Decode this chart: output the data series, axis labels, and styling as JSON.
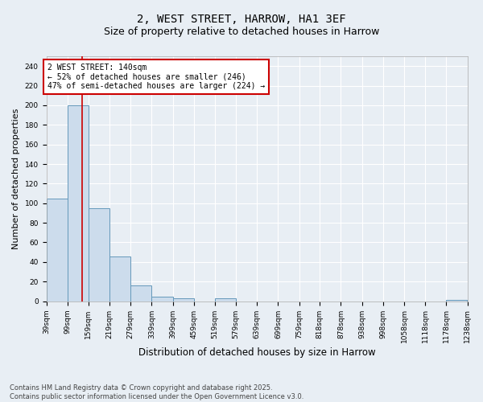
{
  "title_line1": "2, WEST STREET, HARROW, HA1 3EF",
  "title_line2": "Size of property relative to detached houses in Harrow",
  "xlabel": "Distribution of detached houses by size in Harrow",
  "ylabel": "Number of detached properties",
  "bin_edges": [
    39,
    99,
    159,
    219,
    279,
    339,
    399,
    459,
    519,
    579,
    639,
    699,
    759,
    818,
    878,
    938,
    998,
    1058,
    1118,
    1178,
    1238
  ],
  "bar_heights": [
    105,
    200,
    95,
    46,
    16,
    5,
    3,
    0,
    3,
    0,
    0,
    0,
    0,
    0,
    0,
    0,
    0,
    0,
    0,
    1
  ],
  "bar_color": "#ccdcec",
  "bar_edge_color": "#6699bb",
  "bar_edge_width": 0.7,
  "property_size": 140,
  "vline_color": "#cc0000",
  "annotation_line1": "2 WEST STREET: 140sqm",
  "annotation_line2": "← 52% of detached houses are smaller (246)",
  "annotation_line3": "47% of semi-detached houses are larger (224) →",
  "annotation_box_color": "#cc0000",
  "annotation_text_color": "#000000",
  "ylim": [
    0,
    250
  ],
  "yticks": [
    0,
    20,
    40,
    60,
    80,
    100,
    120,
    140,
    160,
    180,
    200,
    220,
    240
  ],
  "background_color": "#e8eef4",
  "plot_background_color": "#e8eef4",
  "grid_color": "#ffffff",
  "footer_text": "Contains HM Land Registry data © Crown copyright and database right 2025.\nContains public sector information licensed under the Open Government Licence v3.0.",
  "tick_label_fontsize": 6.5,
  "title_fontsize1": 10,
  "title_fontsize2": 9,
  "xlabel_fontsize": 8.5,
  "ylabel_fontsize": 8,
  "annotation_fontsize": 7,
  "footer_fontsize": 6
}
